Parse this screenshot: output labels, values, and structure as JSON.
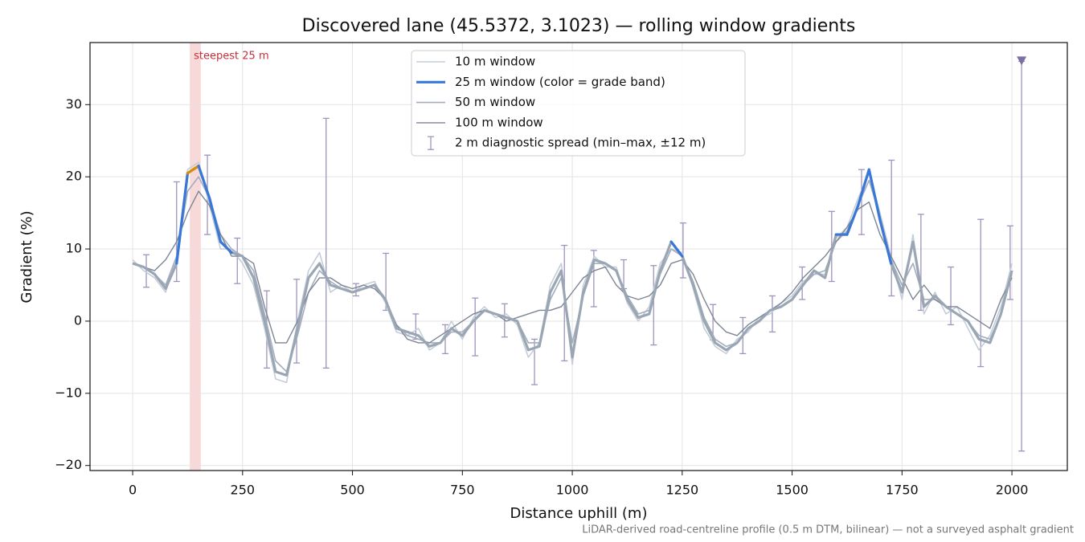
{
  "chart_data": {
    "type": "line",
    "title": "Discovered lane (45.5372, 3.1023) — rolling window gradients",
    "xlabel": "Distance uphill (m)",
    "ylabel": "Gradient (%)",
    "footnote": "LiDAR-derived road-centreline profile (0.5 m DTM, bilinear) — not a surveyed asphalt gradient",
    "xlim": [
      -97,
      2126
    ],
    "ylim": [
      -20.7,
      38.6
    ],
    "xticks": [
      0,
      250,
      500,
      750,
      1000,
      1250,
      1500,
      1750,
      2000
    ],
    "yticks": [
      {
        "value": -20,
        "label": "−20"
      },
      {
        "value": -10,
        "label": "−10"
      },
      0,
      10,
      20,
      30
    ],
    "grid": true,
    "legend": "upper center",
    "x": [
      0,
      25,
      50,
      75,
      100,
      125,
      150,
      175,
      200,
      225,
      250,
      275,
      300,
      325,
      350,
      375,
      400,
      425,
      450,
      475,
      500,
      525,
      550,
      575,
      600,
      625,
      650,
      675,
      700,
      725,
      750,
      775,
      800,
      825,
      850,
      875,
      900,
      925,
      950,
      975,
      1000,
      1025,
      1050,
      1075,
      1100,
      1125,
      1150,
      1175,
      1200,
      1225,
      1250,
      1275,
      1300,
      1325,
      1350,
      1375,
      1400,
      1425,
      1450,
      1475,
      1500,
      1525,
      1550,
      1575,
      1600,
      1625,
      1650,
      1675,
      1700,
      1725,
      1750,
      1775,
      1800,
      1825,
      1850,
      1875,
      1900,
      1925,
      1950,
      1975,
      2000
    ],
    "series": [
      {
        "name": "10 m window",
        "color": "#c5ced8",
        "width": 1.6,
        "values": [
          8.5,
          7,
          6,
          4,
          9,
          21,
          22,
          16,
          10,
          10,
          8,
          5,
          -1,
          -8,
          -8.5,
          0,
          7,
          9.5,
          4,
          5,
          4,
          5,
          5.5,
          2.5,
          -1.5,
          -2,
          -1,
          -4,
          -3,
          0,
          -2.5,
          0.5,
          2,
          0.5,
          1,
          -0.5,
          -5,
          -3,
          5,
          8,
          -6,
          5,
          9,
          7.5,
          7.5,
          2.5,
          0,
          2,
          8,
          10,
          9.5,
          4.5,
          -1,
          -3.5,
          -4.5,
          -2.5,
          -1.5,
          0.5,
          1,
          2.5,
          3.5,
          5.5,
          6.5,
          6.5,
          11.5,
          13,
          17,
          20.5,
          15,
          9,
          3,
          12,
          1,
          4,
          1,
          2,
          -1,
          -4,
          -2,
          2,
          8
        ]
      },
      {
        "name": "25 m window (color = grade band)",
        "color": "#9aa6b4",
        "legend_color": "#3a78d8",
        "width": 3.2,
        "grade_bands": [
          {
            "min": 10,
            "color": "#3a78d8"
          },
          {
            "min": 20,
            "color": "#d98c00"
          }
        ],
        "values": [
          8,
          7.5,
          6.5,
          4.5,
          8,
          20.5,
          21.5,
          17,
          11,
          9.5,
          9,
          6,
          0,
          -7,
          -7.5,
          -1,
          6,
          8,
          5,
          4.5,
          4,
          4.5,
          5,
          3,
          -1,
          -1.5,
          -2,
          -3.5,
          -3,
          -1,
          -2,
          0,
          1.5,
          1,
          0.5,
          0,
          -4,
          -3.5,
          4,
          7,
          -5,
          4,
          8.5,
          8,
          7,
          3,
          0.5,
          1,
          7,
          11,
          9,
          5,
          0,
          -3,
          -4,
          -3,
          -1,
          0,
          1.5,
          2,
          3,
          5,
          7,
          6,
          12,
          12,
          16,
          21,
          14,
          8,
          4,
          11,
          2,
          3.5,
          2,
          1,
          0,
          -2.5,
          -3,
          1,
          7
        ]
      },
      {
        "name": "50 m window",
        "color": "#a3adbd",
        "width": 1.6,
        "values": [
          8,
          7.5,
          6.5,
          5,
          9,
          18,
          20,
          17,
          12,
          10,
          9,
          7,
          1,
          -5.5,
          -7,
          -2,
          4,
          7,
          5.5,
          4.5,
          4,
          4.5,
          5,
          3,
          -0.5,
          -2,
          -2.5,
          -3,
          -3,
          -1.5,
          -1.5,
          0,
          1.5,
          1,
          0.5,
          0,
          -3,
          -3,
          3,
          6,
          -3,
          3.5,
          8,
          8,
          7,
          3.5,
          1,
          1.5,
          6.5,
          10,
          9,
          5.5,
          0.5,
          -2.5,
          -3.5,
          -3,
          -1,
          0,
          1.5,
          2,
          3,
          5,
          6.5,
          7,
          11,
          12.5,
          16,
          19.5,
          14.5,
          8.5,
          5,
          8,
          3,
          3,
          2,
          1,
          0,
          -2,
          -2.5,
          1,
          6.5
        ]
      },
      {
        "name": "100 m window",
        "color": "#7d8494",
        "width": 1.4,
        "values": [
          8,
          7.5,
          7,
          8.5,
          11,
          15,
          18,
          16,
          12,
          9,
          9,
          8,
          2,
          -3,
          -3,
          0,
          4,
          6,
          6,
          5,
          4.5,
          5,
          4.5,
          3,
          -0.5,
          -2.5,
          -3,
          -3,
          -2,
          -1,
          0,
          1,
          1.5,
          1,
          0,
          0.5,
          1,
          1.5,
          1.5,
          2,
          4,
          6,
          7,
          7.5,
          5,
          3.5,
          3,
          3.5,
          5,
          8,
          8.5,
          6.5,
          3,
          0,
          -1.5,
          -2,
          -0.5,
          0.5,
          1.5,
          2.5,
          4,
          6,
          7.5,
          9,
          11,
          13,
          15.5,
          16.5,
          12,
          9,
          6,
          3,
          5,
          3,
          2,
          2,
          1,
          0,
          -1,
          3,
          6
        ]
      }
    ],
    "errorbars": {
      "name": "2 m diagnostic spread (min–max, ±12 m)",
      "color": "#9d94bd",
      "x": [
        31,
        100,
        170,
        238,
        305,
        373,
        440,
        508,
        576,
        644,
        711,
        779,
        846,
        914,
        982,
        1049,
        1117,
        1185,
        1252,
        1320,
        1388,
        1455,
        1523,
        1590,
        1658,
        1726,
        1793,
        1861,
        1929,
        1996,
        2022
      ],
      "min": [
        4.7,
        5.5,
        12,
        5.2,
        -6.5,
        -5.8,
        -6.5,
        3.5,
        1.5,
        -2.5,
        -4.5,
        -4.8,
        -2.2,
        -8.8,
        -5.5,
        2,
        4.5,
        -3.3,
        6,
        -2.6,
        -4.5,
        -1.5,
        3,
        5.5,
        12,
        3.5,
        1.5,
        -0.5,
        -6.3,
        3,
        -18
      ],
      "max": [
        9.2,
        19.3,
        23,
        11.5,
        4.2,
        5.8,
        28.1,
        5.2,
        9.4,
        1,
        -0.5,
        3.2,
        2.4,
        -2.5,
        10.5,
        9.8,
        8.5,
        7.7,
        13.6,
        2.3,
        0.5,
        3.5,
        7.5,
        15.2,
        21,
        22.3,
        14.8,
        7.5,
        14.1,
        13.2,
        36
      ]
    },
    "clipped_marker": {
      "x": 2022,
      "y": 36,
      "color": "#7b6fa3"
    },
    "highlight": {
      "xrange": [
        130,
        155
      ],
      "label": "steepest 25 m",
      "color": "#f5cccc",
      "label_color": "#c0303a"
    }
  }
}
